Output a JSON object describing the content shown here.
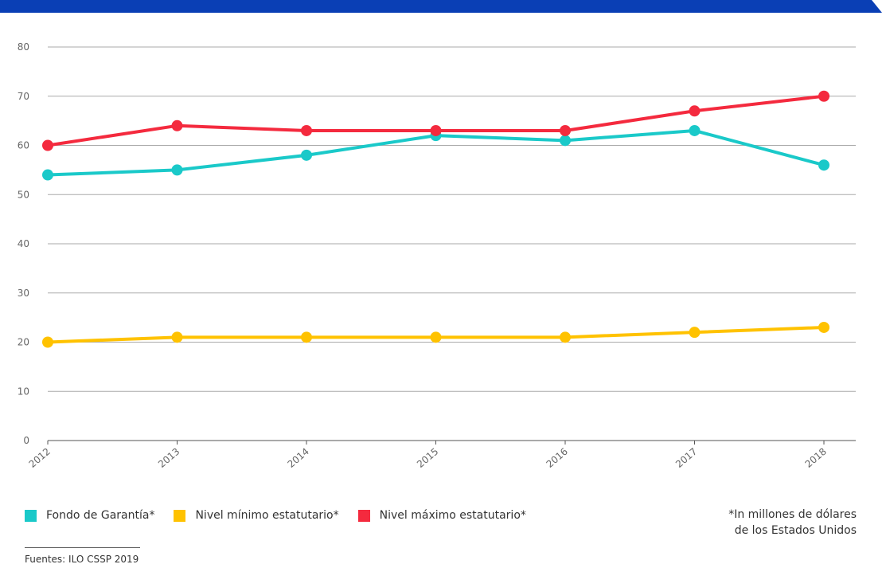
{
  "note": {
    "line1": "*In millones de dólares",
    "line2": "de los Estados Unidos"
  },
  "source": "Fuentes: ILO CSSP 2019",
  "colors": {
    "banner": "#0a3fb5",
    "grid": "#aaaaaa",
    "axis_text": "#666666"
  },
  "chart_data": {
    "type": "line",
    "x": [
      "2012",
      "2013",
      "2014",
      "2015",
      "2016",
      "2017",
      "2018"
    ],
    "ylim": [
      0,
      80
    ],
    "yticks": [
      0,
      10,
      20,
      30,
      40,
      50,
      60,
      70,
      80
    ],
    "grid": true,
    "legend_position": "bottom-left",
    "series": [
      {
        "name": "Fondo de Garantía*",
        "color": "#1ac9c9",
        "values": [
          54,
          55,
          58,
          62,
          61,
          63,
          56
        ]
      },
      {
        "name": "Nivel mínimo estatutario*",
        "color": "#ffc200",
        "values": [
          20,
          21,
          21,
          21,
          21,
          22,
          23
        ]
      },
      {
        "name": "Nivel máximo estatutario*",
        "color": "#f42a3e",
        "values": [
          60,
          64,
          63,
          63,
          63,
          67,
          70
        ]
      }
    ]
  }
}
